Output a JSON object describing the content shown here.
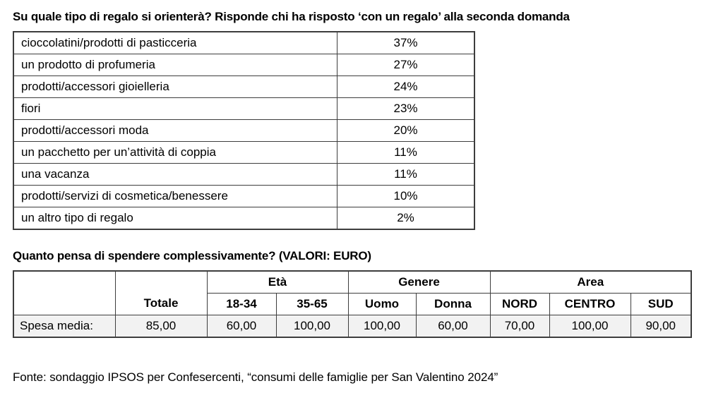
{
  "question1": {
    "title": "Su quale tipo di regalo si orienterà? Risponde chi ha risposto ‘con un regalo’ alla seconda domanda"
  },
  "gift_table": {
    "rows": [
      {
        "label": "cioccolatini/prodotti di pasticceria",
        "value": "37%"
      },
      {
        "label": "un prodotto di profumeria",
        "value": "27%"
      },
      {
        "label": "prodotti/accessori gioielleria",
        "value": "24%"
      },
      {
        "label": "fiori",
        "value": "23%"
      },
      {
        "label": "prodotti/accessori moda",
        "value": "20%"
      },
      {
        "label": "un pacchetto per un’attività di coppia",
        "value": "11%"
      },
      {
        "label": "una vacanza",
        "value": "11%"
      },
      {
        "label": "prodotti/servizi di cosmetica/benessere",
        "value": "10%"
      },
      {
        "label": "un altro tipo di regalo",
        "value": "2%"
      }
    ]
  },
  "question2": {
    "title": "Quanto pensa di spendere complessivamente? (VALORI: EURO)"
  },
  "spend_table": {
    "group_headers": {
      "eta": "Età",
      "genere": "Genere",
      "area": "Area"
    },
    "column_headers": {
      "totale": "Totale",
      "age_18_34": "18-34",
      "age_35_65": "35-65",
      "uomo": "Uomo",
      "donna": "Donna",
      "nord": "NORD",
      "centro": "CENTRO",
      "sud": "SUD"
    },
    "data_row": {
      "label": "Spesa media:",
      "totale": "85,00",
      "age_18_34": "60,00",
      "age_35_65": "100,00",
      "uomo": "100,00",
      "donna": "60,00",
      "nord": "70,00",
      "centro": "100,00",
      "sud": "90,00"
    }
  },
  "footer": {
    "source": "Fonte: sondaggio IPSOS per Confesercenti, “consumi delle famiglie per San Valentino 2024”"
  }
}
